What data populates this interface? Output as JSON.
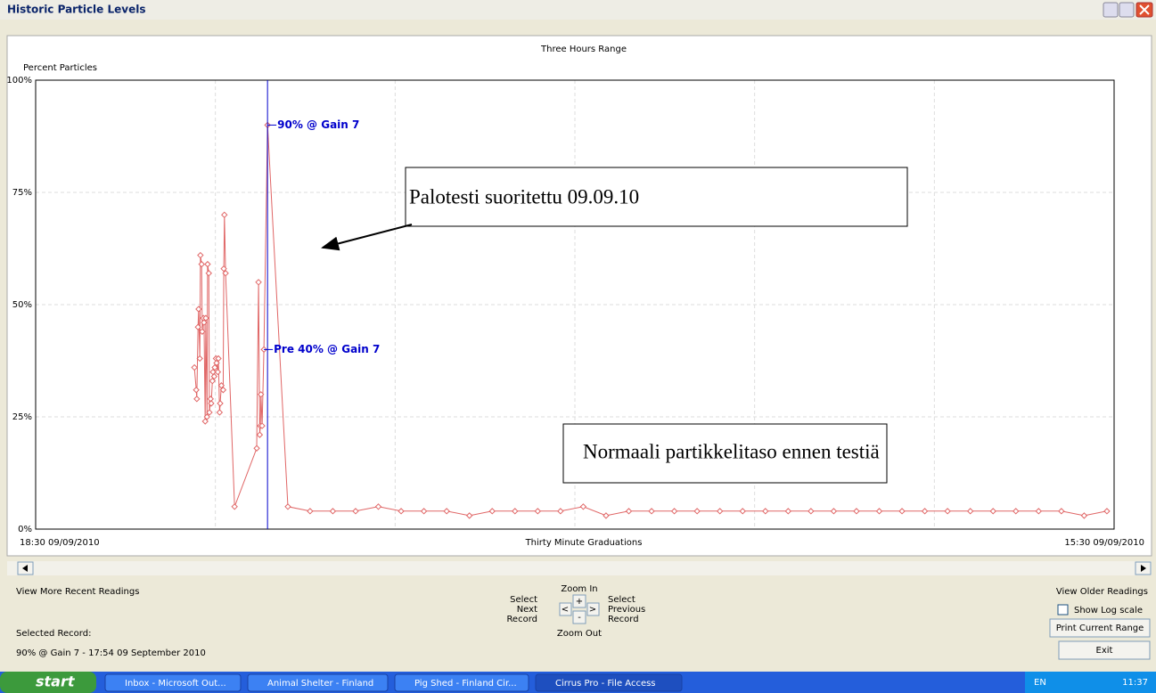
{
  "window": {
    "title": "Historic Particle Levels"
  },
  "chart_data": {
    "type": "line",
    "title": "Three Hours Range",
    "y_label": "Percent Particles",
    "x_label": "Thirty Minute Graduations",
    "x_start_label": "18:30 09/09/2010",
    "x_end_label": "15:30 09/09/2010",
    "x": [
      26.5,
      26.8,
      26.9,
      27.1,
      27.2,
      27.4,
      27.5,
      27.7,
      27.8,
      28.0,
      28.1,
      28.3,
      28.4,
      28.6,
      28.7,
      28.9,
      29.0,
      29.2,
      29.3,
      29.5,
      29.6,
      29.8,
      29.9,
      30.1,
      30.2,
      30.4,
      30.5,
      30.7,
      30.8,
      31.0,
      31.3,
      31.4,
      31.5,
      31.7,
      33.2,
      36.9,
      37.2,
      37.4,
      37.5,
      37.6,
      37.8,
      38.1,
      38.7,
      42.1,
      45.8,
      49.6,
      53.4,
      57.2,
      61.0,
      64.8,
      68.6,
      72.4,
      76.2,
      80.0,
      83.8,
      87.6,
      91.4,
      95.2,
      99.0,
      102.8,
      106.6,
      110.4,
      114.2,
      118.0,
      121.8,
      125.6,
      129.4,
      133.2,
      137.0,
      140.8,
      144.6,
      148.4,
      152.2,
      156.0,
      159.8,
      163.6,
      167.4,
      171.2,
      175.0,
      178.8
    ],
    "values": [
      36,
      31,
      29,
      45,
      49,
      38,
      61,
      59,
      44,
      47,
      46,
      24,
      47,
      25,
      59,
      57,
      26,
      29,
      28,
      33,
      35,
      34,
      36,
      38,
      37,
      35,
      38,
      26,
      28,
      32,
      31,
      58,
      70,
      57,
      5,
      18,
      55,
      21,
      23,
      30,
      23,
      40,
      90,
      5,
      4,
      4,
      4,
      5,
      4,
      4,
      4,
      3,
      4,
      4,
      4,
      4,
      5,
      3,
      4,
      4,
      4,
      4,
      4,
      4,
      4,
      4,
      4,
      4,
      4,
      4,
      4,
      4,
      4,
      4,
      4,
      4,
      4,
      4,
      3,
      4
    ],
    "color": "#e06666",
    "xlim": [
      0,
      180
    ],
    "xticks": [
      0,
      30,
      60,
      90,
      120,
      150,
      180
    ],
    "ylim": [
      0,
      100
    ],
    "yticks": [
      {
        "value": 0,
        "label": "0%"
      },
      {
        "value": 25,
        "label": "25%"
      },
      {
        "value": 50,
        "label": "50%"
      },
      {
        "value": 75,
        "label": "75%"
      },
      {
        "value": 100,
        "label": "100%"
      }
    ],
    "grid": true,
    "log_scale": false,
    "cursor": {
      "x": 38.7,
      "color": "#0000cc"
    },
    "annotations": [
      {
        "text": "90% @ Gain 7",
        "x": 38.7,
        "y": 90
      },
      {
        "text": "Pre 40% @ Gain 7",
        "x": 38.1,
        "y": 40
      }
    ],
    "callouts": [
      "Palotesti suoritettu 09.09.10",
      "Normaali partikkelitaso ennen testiä"
    ]
  },
  "controls": {
    "view_recent": "View More Recent Readings",
    "zoom_in": "Zoom In",
    "zoom_out": "Zoom Out",
    "select_next": [
      "Select",
      "Next",
      "Record"
    ],
    "select_previous": [
      "Select",
      "Previous",
      "Record"
    ],
    "plus": "+",
    "minus": "-",
    "prev": "<",
    "next": ">",
    "view_older": "View Older Readings",
    "log_scale": "Show Log scale",
    "print": "Print Current Range",
    "exit": "Exit",
    "selected_label": "Selected Record:",
    "selected_value": "90% @ Gain 7 - 17:54 09 September 2010"
  },
  "taskbar": {
    "start": "start",
    "tasks": [
      "Inbox - Microsoft Out...",
      "Animal Shelter - Finland",
      "Pig Shed - Finland Cir...",
      "Cirrus Pro - File Access"
    ],
    "lang": "EN",
    "clock": "11:37"
  }
}
